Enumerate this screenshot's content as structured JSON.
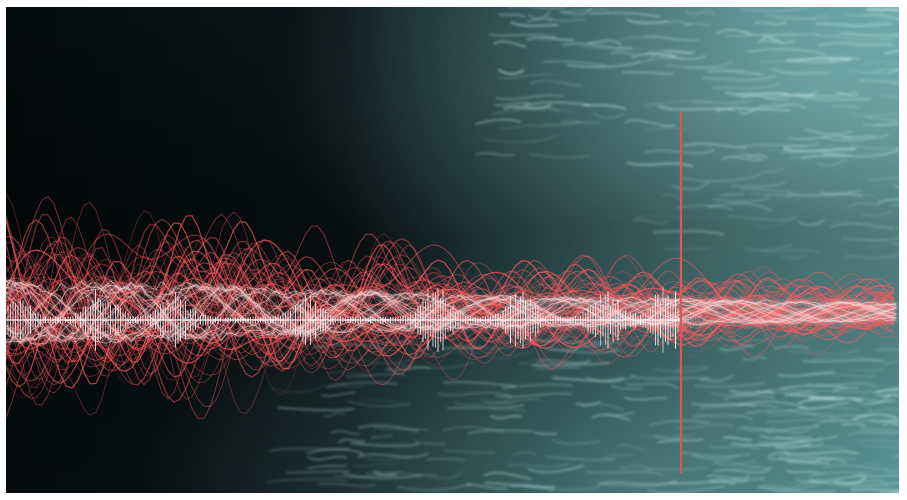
{
  "scene": {
    "description_visible_text": "",
    "colors": {
      "deep_water": "#070d0f",
      "mid_water": "#1d3a3f",
      "light_water": "#5f9a9b",
      "caustic_highlight": "#bfe6e4",
      "waveform_red": "#ff5a5f",
      "waveform_white": "#ffffff",
      "playhead_red": "#e2574c"
    },
    "icons": {
      "playhead": "vertical-line",
      "waveform": "audio-waveform"
    }
  }
}
